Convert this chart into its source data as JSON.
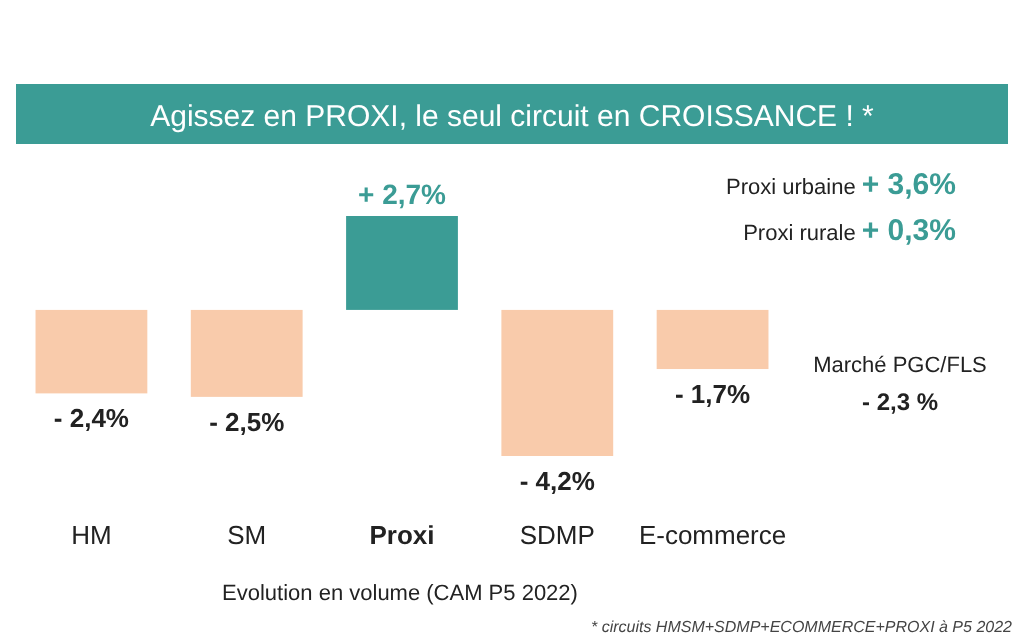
{
  "chart_data": {
    "type": "bar",
    "title": "Agissez en PROXI, le seul circuit en CROISSANCE ! *",
    "xlabel": "Evolution en volume (CAM P5 2022)",
    "categories": [
      "HM",
      "SM",
      "Proxi",
      "SDMP",
      "E-commerce"
    ],
    "values": [
      -2.4,
      -2.5,
      2.7,
      -4.2,
      -1.7
    ],
    "colors": [
      "#f9cbab",
      "#f9cbab",
      "#3b9c95",
      "#f9cbab",
      "#f9cbab"
    ],
    "value_labels": [
      "- 2,4%",
      "- 2,5%",
      "+ 2,7%",
      "- 4,2%",
      "- 1,7%"
    ],
    "annotations": [
      "Proxi urbaine + 3,6%",
      "Proxi rurale + 0,3%",
      "Marché PGC/FLS - 2,3 %",
      "* circuits HMSM+SDMP+ECOMMERCE+PROXI à P5 2022"
    ]
  }
}
